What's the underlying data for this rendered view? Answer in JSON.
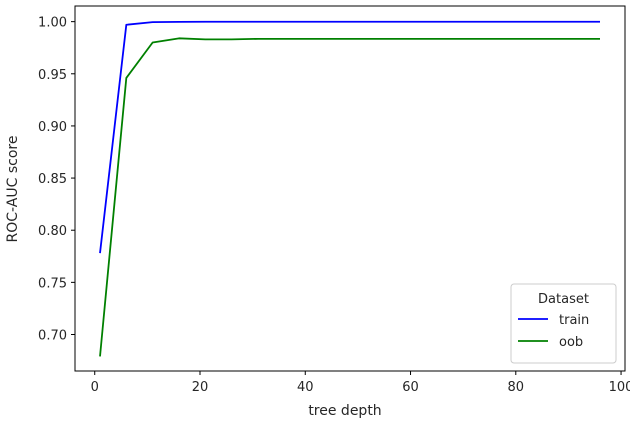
{
  "chart_data": {
    "type": "line",
    "title": "",
    "xlabel": "tree depth",
    "ylabel": "ROC-AUC score",
    "xlim": [
      -3.75,
      100.75
    ],
    "ylim": [
      0.665,
      1.015
    ],
    "xticks": [
      0,
      20,
      40,
      60,
      80,
      100
    ],
    "yticks": [
      0.7,
      0.75,
      0.8,
      0.85,
      0.9,
      0.95,
      1.0
    ],
    "grid": false,
    "legend": {
      "title": "Dataset",
      "placement": "lower-right"
    },
    "series": [
      {
        "name": "train",
        "color": "#0000ff",
        "x": [
          1,
          6,
          11,
          16,
          21,
          26,
          31,
          36,
          41,
          46,
          51,
          56,
          61,
          66,
          71,
          76,
          81,
          86,
          91,
          96
        ],
        "y": [
          0.778,
          0.997,
          0.9995,
          0.9998,
          0.9999,
          0.9999,
          0.9999,
          0.9999,
          0.9999,
          0.9999,
          0.9999,
          0.9999,
          0.9999,
          0.9999,
          0.9999,
          0.9999,
          0.9999,
          0.9999,
          0.9999,
          0.9999
        ]
      },
      {
        "name": "oob",
        "color": "#008000",
        "x": [
          1,
          6,
          11,
          16,
          21,
          26,
          31,
          36,
          41,
          46,
          51,
          56,
          61,
          66,
          71,
          76,
          81,
          86,
          91,
          96
        ],
        "y": [
          0.679,
          0.946,
          0.98,
          0.984,
          0.983,
          0.983,
          0.9835,
          0.9835,
          0.9835,
          0.9835,
          0.9835,
          0.9835,
          0.9835,
          0.9835,
          0.9835,
          0.9835,
          0.9835,
          0.9835,
          0.9835,
          0.9835
        ]
      }
    ]
  }
}
